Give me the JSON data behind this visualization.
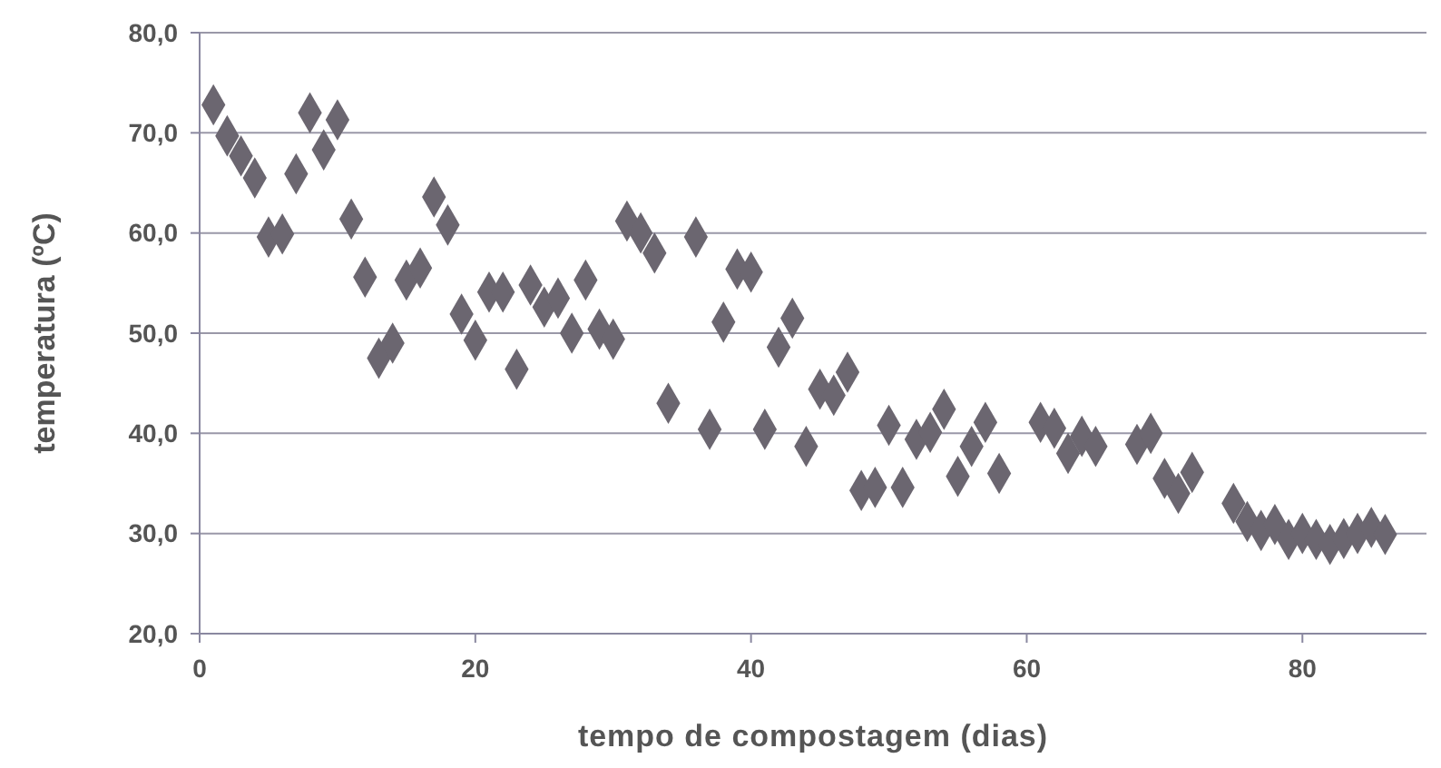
{
  "chart_data": {
    "type": "scatter",
    "xlabel": "tempo de compostagem (dias)",
    "ylabel": "temperatura (ºC)",
    "marker": "diamond",
    "grid": "y",
    "xlim": [
      0,
      89
    ],
    "xticks": [
      0,
      20,
      40,
      60,
      80
    ],
    "ylim": [
      20,
      80
    ],
    "yticks": [
      {
        "value": 20,
        "label": "20,0"
      },
      {
        "value": 30,
        "label": "30,0"
      },
      {
        "value": 40,
        "label": "40,0"
      },
      {
        "value": 50,
        "label": "50,0"
      },
      {
        "value": 60,
        "label": "60,0"
      },
      {
        "value": 70,
        "label": "70,0"
      },
      {
        "value": 80,
        "label": "80,0"
      }
    ],
    "series": [
      {
        "color": "#6b6670",
        "x": [
          1,
          2,
          3,
          4,
          5,
          6,
          7,
          8,
          9,
          10,
          11,
          12,
          13,
          14,
          15,
          16,
          17,
          18,
          19,
          20,
          21,
          22,
          23,
          24,
          25,
          26,
          27,
          28,
          29,
          30,
          31,
          32,
          33,
          34,
          36,
          37,
          38,
          39,
          40,
          41,
          42,
          43,
          44,
          45,
          46,
          47,
          48,
          49,
          50,
          51,
          52,
          53,
          54,
          55,
          56,
          57,
          58,
          61,
          62,
          63,
          64,
          65,
          68,
          69,
          70,
          71,
          72,
          75,
          76,
          77,
          78,
          79,
          80,
          81,
          82,
          83,
          84,
          85,
          86
        ],
        "values": [
          72.8,
          69.7,
          67.7,
          65.5,
          59.6,
          59.9,
          65.9,
          72.0,
          68.3,
          71.3,
          61.4,
          55.6,
          47.5,
          49.0,
          55.3,
          56.5,
          63.6,
          60.8,
          51.9,
          49.3,
          54.1,
          54.1,
          46.4,
          54.8,
          52.6,
          53.5,
          50.0,
          55.3,
          50.4,
          49.4,
          61.2,
          60.0,
          58.0,
          43.0,
          59.6,
          40.4,
          51.1,
          56.4,
          56.1,
          40.4,
          48.6,
          51.5,
          38.7,
          44.4,
          43.8,
          46.1,
          34.3,
          34.6,
          40.8,
          34.6,
          39.4,
          40.1,
          42.4,
          35.7,
          38.7,
          41.1,
          36.0,
          41.1,
          40.5,
          38.0,
          39.7,
          38.7,
          38.9,
          40.0,
          35.5,
          34.0,
          36.1,
          33.0,
          31.2,
          30.3,
          30.9,
          29.4,
          30.0,
          29.4,
          28.9,
          29.5,
          30.0,
          30.6,
          29.9
        ]
      }
    ]
  }
}
